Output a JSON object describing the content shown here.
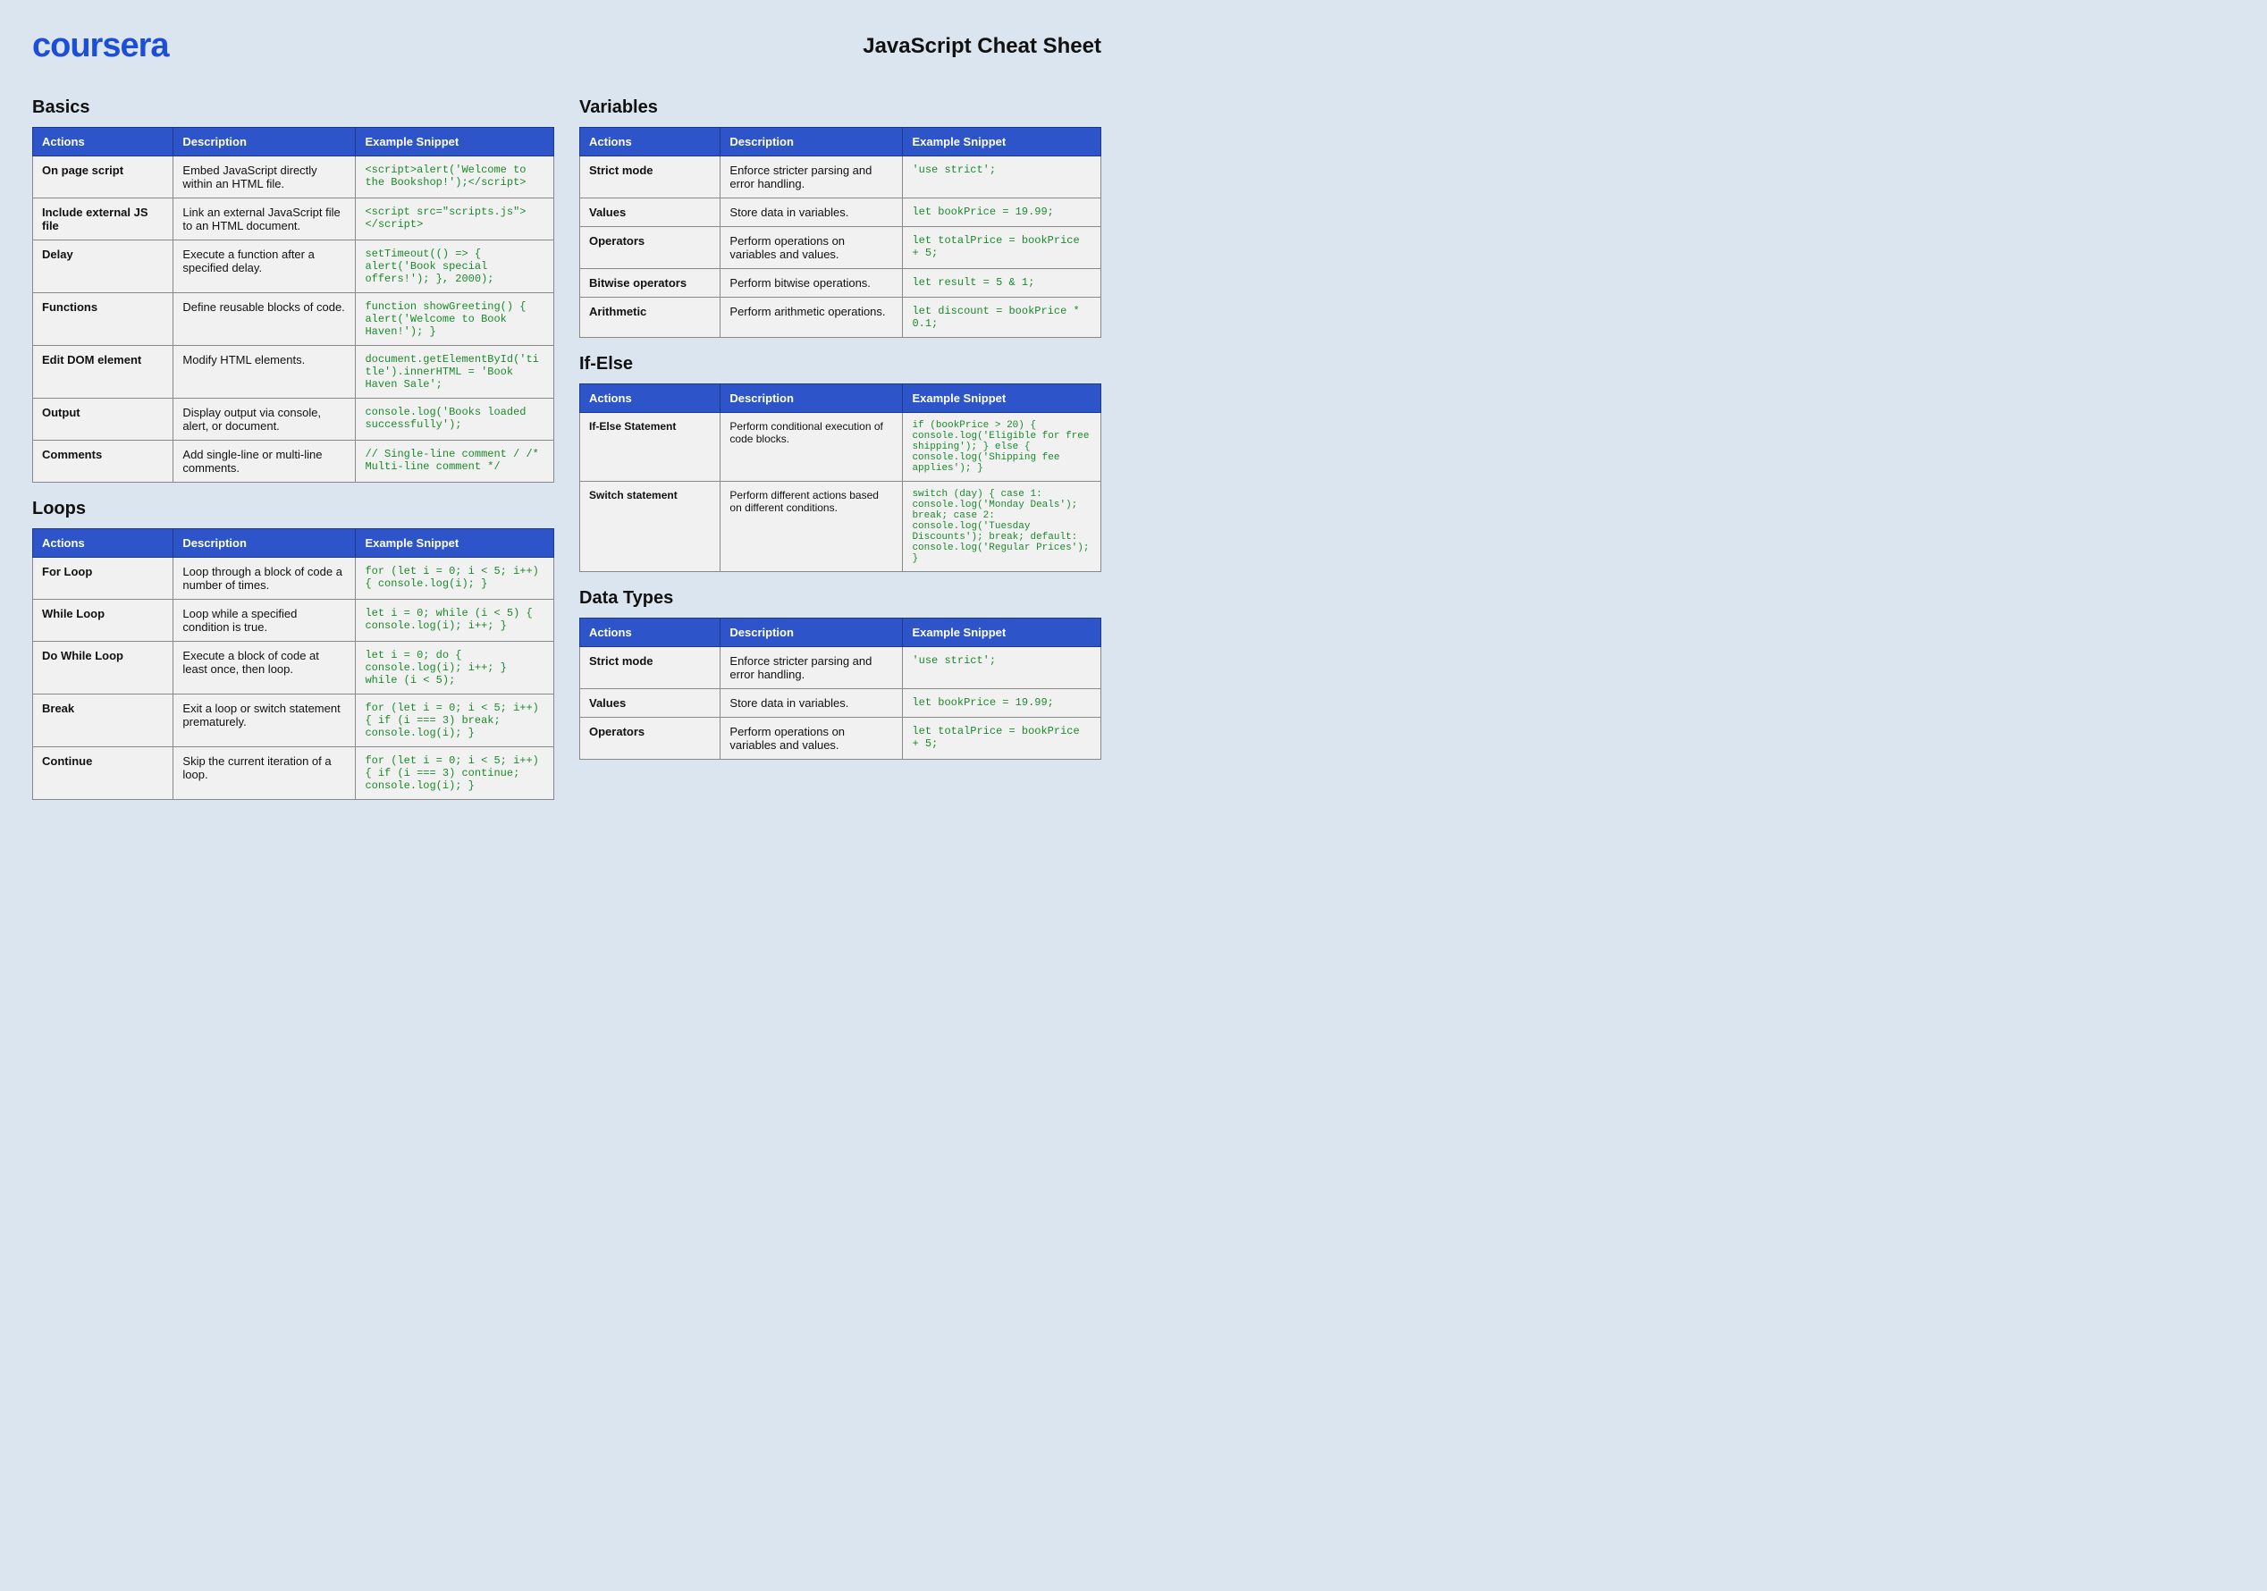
{
  "brand": "coursera",
  "page_title": "JavaScript Cheat Sheet",
  "colors": {
    "page_bg": "#dae5f0",
    "brand": "#1c4ed8",
    "th_bg": "#2d55c9",
    "th_fg": "#ffffff",
    "cell_bg": "#f1f1f1",
    "code_fg": "#1a8a2a",
    "border": "#888888"
  },
  "headers": {
    "actions": "Actions",
    "description": "Description",
    "snippet": "Example Snippet"
  },
  "left": [
    {
      "title": "Basics",
      "rows": [
        {
          "action": "On page script",
          "desc": "Embed JavaScript directly within an HTML file.",
          "snippet": "<script>alert('Welcome to the Bookshop!');</script>"
        },
        {
          "action": "Include external JS file",
          "desc": "Link an external JavaScript file to an HTML document.",
          "snippet": "<script src=\"scripts.js\"></script>"
        },
        {
          "action": "Delay",
          "desc": "Execute a function after a specified delay.",
          "snippet": "setTimeout(() => { alert('Book special offers!'); }, 2000);"
        },
        {
          "action": "Functions",
          "desc": "Define reusable blocks of code.",
          "snippet": "function showGreeting() { alert('Welcome to Book Haven!'); }"
        },
        {
          "action": "Edit DOM element",
          "desc": "Modify HTML elements.",
          "snippet": "document.getElementById('title').innerHTML = 'Book Haven Sale';"
        },
        {
          "action": "Output",
          "desc": "Display output via console, alert, or document.",
          "snippet": "console.log('Books loaded successfully');"
        },
        {
          "action": "Comments",
          "desc": "Add single-line or multi-line comments.",
          "snippet": "// Single-line comment / /* Multi-line comment */"
        }
      ]
    },
    {
      "title": "Loops",
      "rows": [
        {
          "action": "For Loop",
          "desc": "Loop through a block of code a number of times.",
          "snippet": "for (let i = 0; i < 5; i++) { console.log(i); }"
        },
        {
          "action": "While Loop",
          "desc": "Loop while a specified condition is true.",
          "snippet": "let i = 0; while (i < 5) { console.log(i); i++; }"
        },
        {
          "action": "Do While Loop",
          "desc": "Execute a block of code at least once, then loop.",
          "snippet": "let i = 0; do { console.log(i); i++; } while (i < 5);"
        },
        {
          "action": "Break",
          "desc": "Exit a loop or switch statement prematurely.",
          "snippet": "for (let i = 0; i < 5; i++) { if (i === 3) break; console.log(i); }"
        },
        {
          "action": "Continue",
          "desc": "Skip the current iteration of a loop.",
          "snippet": "for (let i = 0; i < 5; i++) { if (i === 3) continue; console.log(i); }"
        }
      ]
    }
  ],
  "right": [
    {
      "title": "Variables",
      "rows": [
        {
          "action": "Strict mode",
          "desc": "Enforce stricter parsing and error handling.",
          "snippet": "'use strict';"
        },
        {
          "action": "Values",
          "desc": "Store data in variables.",
          "snippet": "let bookPrice = 19.99;"
        },
        {
          "action": "Operators",
          "desc": "Perform operations on variables and values.",
          "snippet": "let totalPrice = bookPrice + 5;"
        },
        {
          "action": "Bitwise operators",
          "desc": "Perform bitwise operations.",
          "snippet": "let result = 5 & 1;"
        },
        {
          "action": "Arithmetic",
          "desc": "Perform arithmetic operations.",
          "snippet": "let discount = bookPrice * 0.1;"
        }
      ]
    },
    {
      "title": "If-Else",
      "small": true,
      "rows": [
        {
          "action": "If-Else Statement",
          "desc": "Perform conditional execution of code blocks.",
          "snippet": "if (bookPrice > 20) { console.log('Eligible for free shipping'); } else { console.log('Shipping fee applies'); }"
        },
        {
          "action": "Switch statement",
          "desc": "Perform different actions based on different conditions.",
          "snippet": "switch (day) { case 1: console.log('Monday Deals'); break; case 2: console.log('Tuesday Discounts'); break; default: console.log('Regular Prices'); }"
        }
      ]
    },
    {
      "title": "Data Types",
      "rows": [
        {
          "action": "Strict mode",
          "desc": "Enforce stricter parsing and error handling.",
          "snippet": "'use strict';"
        },
        {
          "action": "Values",
          "desc": "Store data in variables.",
          "snippet": "let bookPrice = 19.99;"
        },
        {
          "action": "Operators",
          "desc": "Perform operations on variables and values.",
          "snippet": "let totalPrice = bookPrice + 5;"
        }
      ]
    }
  ]
}
